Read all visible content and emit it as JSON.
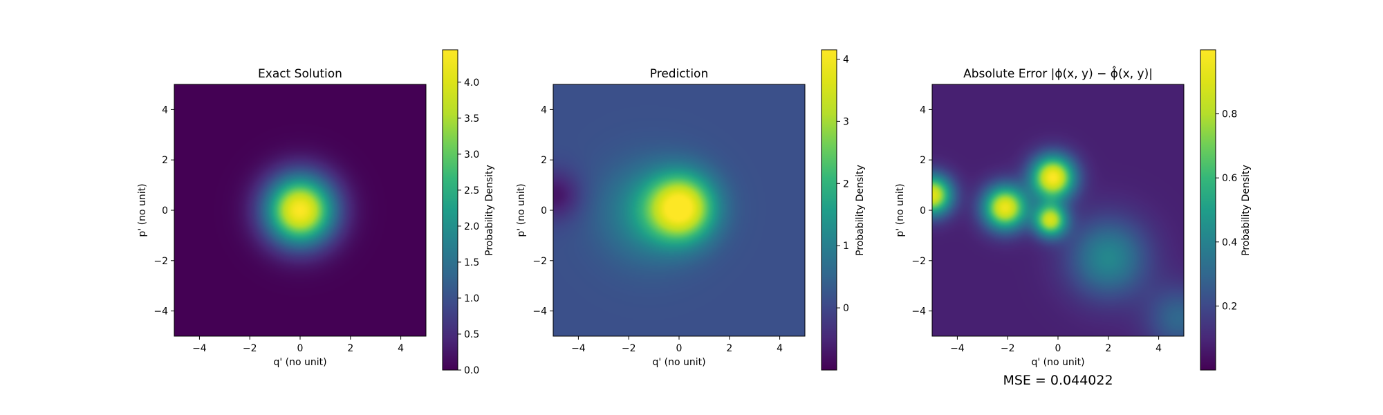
{
  "chart_data": [
    {
      "type": "heatmap",
      "title": "Exact Solution",
      "xlabel": "q' (no unit)",
      "ylabel": "p' (no unit)",
      "xlim": [
        -5,
        5
      ],
      "ylim": [
        -5,
        5
      ],
      "xticks": [
        -4,
        -2,
        0,
        2,
        4
      ],
      "yticks": [
        -4,
        -2,
        0,
        2,
        4
      ],
      "xtick_labels": [
        "−4",
        "−2",
        "0",
        "2",
        "4"
      ],
      "ytick_labels": [
        "−4",
        "−2",
        "0",
        "2",
        "4"
      ],
      "colormap": "viridis",
      "grid": false,
      "colorbar": {
        "label": "Probability Density",
        "range": [
          0,
          4.45
        ],
        "ticks": [
          0,
          0.5,
          1,
          1.5,
          2,
          2.5,
          3,
          3.5,
          4
        ],
        "tick_labels": [
          "0.0",
          "0.5",
          "1.0",
          "1.5",
          "2.0",
          "2.5",
          "3.0",
          "3.5",
          "4.0"
        ]
      },
      "peaks": [
        {
          "x": 0,
          "y": 0,
          "value": 4.45,
          "width": 0.95
        }
      ]
    },
    {
      "type": "heatmap",
      "title": "Prediction",
      "xlabel": "q' (no unit)",
      "ylabel": "p' (no unit)",
      "xlim": [
        -5,
        5
      ],
      "ylim": [
        -5,
        5
      ],
      "xticks": [
        -4,
        -2,
        0,
        2,
        4
      ],
      "yticks": [
        -4,
        -2,
        0,
        2,
        4
      ],
      "xtick_labels": [
        "−4",
        "−2",
        "0",
        "2",
        "4"
      ],
      "ytick_labels": [
        "−4",
        "−2",
        "0",
        "2",
        "4"
      ],
      "colormap": "viridis",
      "grid": false,
      "colorbar": {
        "label": "Probability Density",
        "range": [
          -1,
          4.15
        ],
        "ticks": [
          0,
          1,
          2,
          3,
          4
        ],
        "tick_labels": [
          "0",
          "1",
          "2",
          "3",
          "4"
        ]
      },
      "background_value": 0.15,
      "peaks": [
        {
          "x": 0.1,
          "y": 0.1,
          "value": 3.95,
          "width": 0.9
        },
        {
          "x": -1.2,
          "y": -0.1,
          "value": 1.3,
          "width": 1.3
        },
        {
          "x": -4.9,
          "y": 0.6,
          "value": -0.75,
          "width": 0.7
        }
      ]
    },
    {
      "type": "heatmap",
      "title": "Absolute Error |ϕ(x, y) − ϕ̂(x, y)|",
      "xlabel": "q' (no unit)",
      "ylabel": "p' (no unit)",
      "xlim": [
        -5,
        5
      ],
      "ylim": [
        -5,
        5
      ],
      "xticks": [
        -4,
        -2,
        0,
        2,
        4
      ],
      "yticks": [
        -4,
        -2,
        0,
        2,
        4
      ],
      "xtick_labels": [
        "−4",
        "−2",
        "0",
        "2",
        "4"
      ],
      "ytick_labels": [
        "−4",
        "−2",
        "0",
        "2",
        "4"
      ],
      "colormap": "viridis",
      "grid": false,
      "colorbar": {
        "label": "Probability Density",
        "range": [
          0,
          1.0
        ],
        "ticks": [
          0.2,
          0.4,
          0.6,
          0.8
        ],
        "tick_labels": [
          "0.2",
          "0.4",
          "0.6",
          "0.8"
        ]
      },
      "background_value": 0.08,
      "peaks": [
        {
          "x": -0.2,
          "y": 1.3,
          "value": 1.0,
          "width": 0.6
        },
        {
          "x": -2.1,
          "y": 0.1,
          "value": 0.95,
          "width": 0.6
        },
        {
          "x": -5.0,
          "y": 0.6,
          "value": 0.92,
          "width": 0.55
        },
        {
          "x": -0.3,
          "y": -0.4,
          "value": 0.85,
          "width": 0.45
        },
        {
          "x": 2.0,
          "y": -1.9,
          "value": 0.42,
          "width": 1.1
        },
        {
          "x": 4.8,
          "y": -4.3,
          "value": 0.3,
          "width": 0.9
        }
      ],
      "annotation": "MSE = 0.044022"
    }
  ]
}
